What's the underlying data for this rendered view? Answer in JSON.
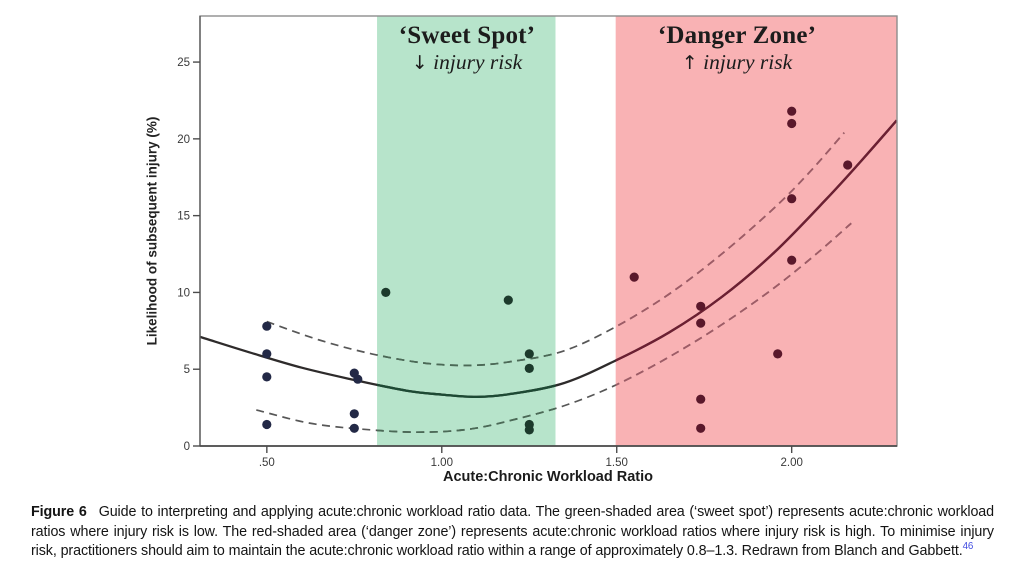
{
  "chart_data": {
    "type": "scatter",
    "xlabel": "Acute:Chronic Workload Ratio",
    "ylabel": "Likelihood of subsequent injury (%)",
    "xlim": [
      0.309,
      2.301
    ],
    "ylim": [
      0,
      28
    ],
    "grid": false,
    "x_ticks": [
      {
        "value": 0.5,
        "label": ".50"
      },
      {
        "value": 1.0,
        "label": "1.00"
      },
      {
        "value": 1.5,
        "label": "1.50"
      },
      {
        "value": 2.0,
        "label": "2.00"
      }
    ],
    "y_ticks": [
      {
        "value": 0,
        "label": "0"
      },
      {
        "value": 5,
        "label": "5"
      },
      {
        "value": 10,
        "label": "10"
      },
      {
        "value": 15,
        "label": "15"
      },
      {
        "value": 20,
        "label": "20"
      },
      {
        "value": 25,
        "label": "25"
      }
    ],
    "zones": [
      {
        "name": "sweet-spot",
        "key": "sweet",
        "from": 0.815,
        "to": 1.325,
        "color": "#b7e4cb",
        "label": "‘Sweet Spot’",
        "arrow": "↓",
        "sub": "injury risk"
      },
      {
        "name": "danger-zone",
        "key": "danger",
        "from": 1.497,
        "to": 2.301,
        "color": "#f9b2b4",
        "label": "‘Danger Zone’",
        "arrow": "↑",
        "sub": "injury risk"
      }
    ],
    "points": [
      [
        0.5,
        7.8
      ],
      [
        0.5,
        6.0
      ],
      [
        0.5,
        4.5
      ],
      [
        0.5,
        1.4
      ],
      [
        0.75,
        4.75
      ],
      [
        0.76,
        4.35
      ],
      [
        0.75,
        2.1
      ],
      [
        0.75,
        1.15
      ],
      [
        0.84,
        10.0
      ],
      [
        1.19,
        9.5
      ],
      [
        1.25,
        6.0
      ],
      [
        1.25,
        5.05
      ],
      [
        1.25,
        1.4
      ],
      [
        1.25,
        1.05
      ],
      [
        1.55,
        11.0
      ],
      [
        1.74,
        9.1
      ],
      [
        1.74,
        8.0
      ],
      [
        1.74,
        3.05
      ],
      [
        1.74,
        1.15
      ],
      [
        1.96,
        6.0
      ],
      [
        2.0,
        21.8
      ],
      [
        2.0,
        21.0
      ],
      [
        2.0,
        16.1
      ],
      [
        2.0,
        12.1
      ],
      [
        2.16,
        18.3
      ]
    ],
    "fit_curve": {
      "name": "polynomial-fit",
      "points": [
        [
          0.31,
          7.1
        ],
        [
          0.45,
          6.1
        ],
        [
          0.6,
          5.1
        ],
        [
          0.75,
          4.3
        ],
        [
          0.9,
          3.6
        ],
        [
          1.0,
          3.35
        ],
        [
          1.1,
          3.2
        ],
        [
          1.2,
          3.4
        ],
        [
          1.35,
          4.1
        ],
        [
          1.5,
          5.6
        ],
        [
          1.65,
          7.4
        ],
        [
          1.8,
          9.7
        ],
        [
          1.95,
          12.6
        ],
        [
          2.1,
          16.1
        ],
        [
          2.2,
          18.6
        ],
        [
          2.3,
          21.2
        ]
      ]
    },
    "upper_band": {
      "name": "upper-confidence-band",
      "points": [
        [
          0.5,
          8.1
        ],
        [
          0.65,
          6.9
        ],
        [
          0.8,
          6.0
        ],
        [
          0.95,
          5.4
        ],
        [
          1.08,
          5.25
        ],
        [
          1.2,
          5.5
        ],
        [
          1.35,
          6.2
        ],
        [
          1.5,
          7.8
        ],
        [
          1.65,
          9.9
        ],
        [
          1.8,
          12.5
        ],
        [
          1.95,
          15.5
        ],
        [
          2.05,
          17.8
        ],
        [
          2.15,
          20.4
        ]
      ]
    },
    "lower_band": {
      "name": "lower-confidence-band",
      "points": [
        [
          0.47,
          2.35
        ],
        [
          0.62,
          1.5
        ],
        [
          0.77,
          1.1
        ],
        [
          0.93,
          0.9
        ],
        [
          1.08,
          1.1
        ],
        [
          1.22,
          1.8
        ],
        [
          1.36,
          2.7
        ],
        [
          1.5,
          4.0
        ],
        [
          1.65,
          5.8
        ],
        [
          1.8,
          7.9
        ],
        [
          1.95,
          10.3
        ],
        [
          2.07,
          12.5
        ],
        [
          2.17,
          14.5
        ]
      ]
    },
    "colors": {
      "solid": "#2e2b2b",
      "dashed": "#575757",
      "solid_sweet": "#1d4a34",
      "dashed_sweet": "#4a6a56",
      "solid_danger": "#6d1f32",
      "dashed_danger": "#a05b66",
      "dot": "#232946",
      "dot_sweet": "#1c3a2c",
      "dot_danger": "#5a182b",
      "frame": "#8d8d8d",
      "axis": "#4c4c4c"
    }
  },
  "caption": {
    "label": "Figure 6",
    "text": "Guide to interpreting and applying acute:chronic workload ratio data. The green-shaded area (‘sweet spot’) represents acute:chronic workload ratios where injury risk is low. The red-shaded area (‘danger zone’) represents acute:chronic workload ratios where injury risk is high. To minimise injury risk, practitioners should aim to maintain the acute:chronic workload ratio within a range of approximately 0.8–1.3. Redrawn from Blanch and Gabbett.",
    "reference": "46"
  }
}
